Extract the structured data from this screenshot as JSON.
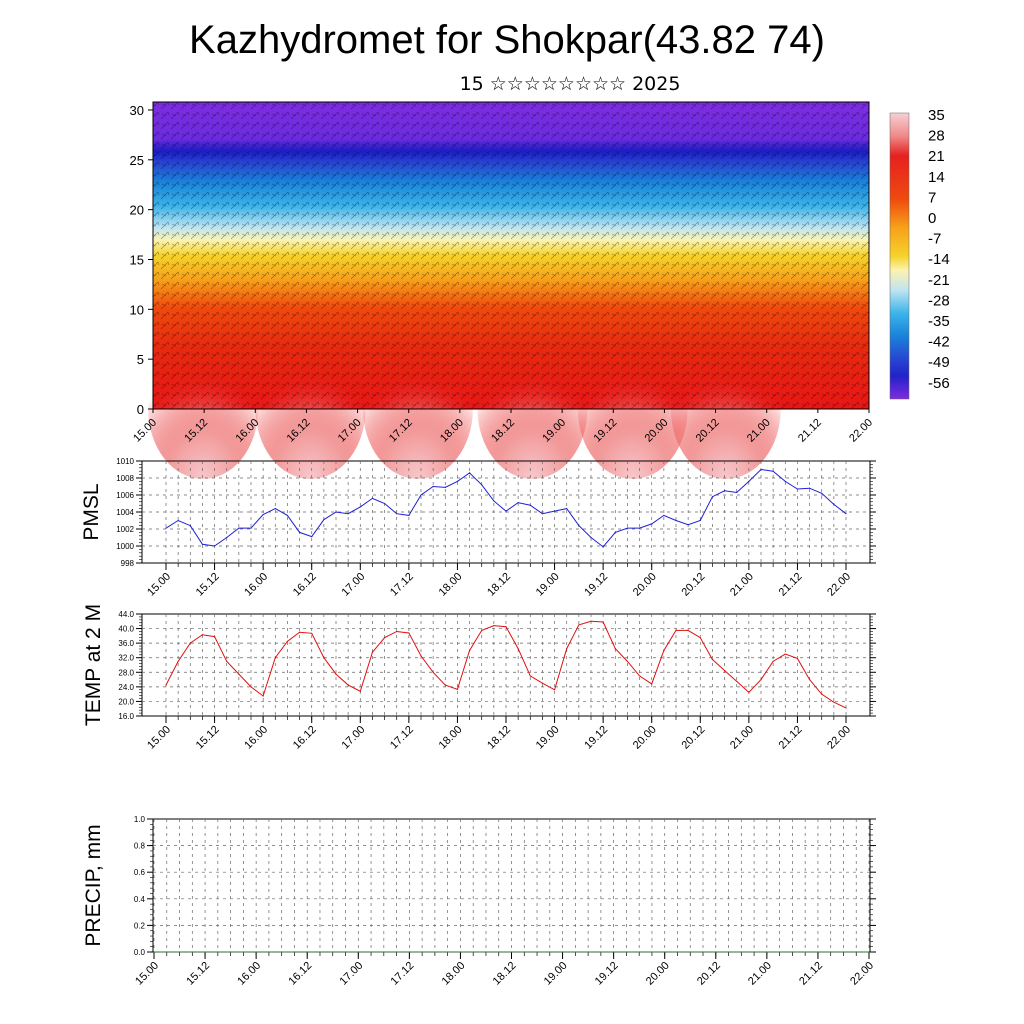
{
  "title": "Kazhydromet for Shokpar(43.82 74)",
  "subtitle": "15 ☆☆☆☆☆☆☆☆ 2025",
  "colors": {
    "pmsl_line": "#1f1fd6",
    "temp_line": "#e01010",
    "precip_line": "#2e6b2e",
    "grid": "#555555"
  },
  "chart_data": [
    {
      "type": "heatmap",
      "description_vars": "vertical temperature cross-section with wind barbs",
      "x_tick_labels": [
        "15.00",
        "15.12",
        "16.00",
        "16.12",
        "17.00",
        "17.12",
        "18.00",
        "18.12",
        "19.00",
        "19.12",
        "20.00",
        "20.12",
        "21.00",
        "21.12",
        "22.00"
      ],
      "y_tick_labels": [
        "0",
        "5",
        "10",
        "15",
        "20",
        "25",
        "30"
      ],
      "ylim": [
        0,
        30.8
      ],
      "colorbar_labels": [
        "35",
        "28",
        "21",
        "14",
        "7",
        "0",
        "-7",
        "-14",
        "-21",
        "-28",
        "-35",
        "-42",
        "-49",
        "-56"
      ],
      "colorbar_stops": [
        {
          "value": 35,
          "color": "#f4c4c8"
        },
        {
          "value": 28,
          "color": "#f08a8a"
        },
        {
          "value": 21,
          "color": "#e62020"
        },
        {
          "value": 14,
          "color": "#e62a10"
        },
        {
          "value": 7,
          "color": "#f05a10"
        },
        {
          "value": 0,
          "color": "#f7a01a"
        },
        {
          "value": -7,
          "color": "#f5d22a"
        },
        {
          "value": -14,
          "color": "#fbf3a8"
        },
        {
          "value": -21,
          "color": "#bfe4f2"
        },
        {
          "value": -28,
          "color": "#3cb4ea"
        },
        {
          "value": -35,
          "color": "#1a82d8"
        },
        {
          "value": -42,
          "color": "#2846d2"
        },
        {
          "value": -49,
          "color": "#2222c8"
        },
        {
          "value": -56,
          "color": "#7e2ce0"
        }
      ]
    },
    {
      "type": "line",
      "ylabel": "PMSL",
      "x_tick_labels": [
        "15.00",
        "15.12",
        "16.00",
        "16.12",
        "17.00",
        "17.12",
        "18.00",
        "18.12",
        "19.00",
        "19.12",
        "20.00",
        "20.12",
        "21.00",
        "21.12",
        "22.00"
      ],
      "y_tick_labels": [
        "998",
        "1000",
        "1002",
        "1004",
        "1006",
        "1008",
        "1010"
      ],
      "ylim": [
        998,
        1010
      ],
      "x_step_hours": 3,
      "series": [
        {
          "values": [
            1002.1,
            1003.0,
            1002.4,
            1000.2,
            1000.0,
            1001.0,
            1002.1,
            1002.1,
            1003.7,
            1004.4,
            1003.6,
            1001.6,
            1001.1,
            1003.1,
            1004.0,
            1003.8,
            1004.6,
            1005.6,
            1005.0,
            1003.8,
            1003.6,
            1006.0,
            1007.0,
            1006.9,
            1007.6,
            1008.6,
            1007.2,
            1005.3,
            1004.1,
            1005.1,
            1004.8,
            1003.8,
            1004.1,
            1004.4,
            1002.4,
            1001.0,
            999.9,
            1001.6,
            1002.1,
            1002.1,
            1002.6,
            1003.6,
            1003.0,
            1002.5,
            1003.0,
            1005.8,
            1006.5,
            1006.3,
            1007.6,
            1009.0,
            1008.8,
            1007.6,
            1006.7,
            1006.8,
            1006.2,
            1004.9,
            1003.8
          ]
        }
      ]
    },
    {
      "type": "line",
      "ylabel": "TEMP at 2 M",
      "x_tick_labels": [
        "15.00",
        "15.12",
        "16.00",
        "16.12",
        "17.00",
        "17.12",
        "18.00",
        "18.12",
        "19.00",
        "19.12",
        "20.00",
        "20.12",
        "21.00",
        "21.12",
        "22.00"
      ],
      "y_tick_labels": [
        "16.0",
        "20.0",
        "24.0",
        "28.0",
        "32.0",
        "36.0",
        "40.0",
        "44.0"
      ],
      "ylim": [
        16,
        44
      ],
      "x_step_hours": 3,
      "series": [
        {
          "values": [
            24.5,
            31.0,
            36.0,
            38.3,
            37.8,
            31.0,
            27.5,
            24.0,
            21.5,
            32.0,
            36.5,
            39.0,
            38.7,
            32.0,
            27.5,
            24.5,
            22.8,
            33.5,
            37.5,
            39.2,
            38.8,
            32.5,
            28.0,
            24.5,
            23.3,
            34.0,
            39.5,
            40.8,
            40.5,
            34.5,
            27.0,
            25.0,
            23.2,
            34.5,
            41.0,
            42.0,
            41.8,
            34.5,
            31.0,
            27.0,
            24.8,
            34.0,
            39.5,
            39.5,
            37.5,
            31.5,
            28.5,
            25.5,
            22.5,
            26.0,
            31.0,
            33.0,
            31.8,
            26.0,
            22.0,
            19.8,
            18.2
          ]
        }
      ]
    },
    {
      "type": "line",
      "ylabel": "PRECIP, mm",
      "x_tick_labels": [
        "15.00",
        "15.12",
        "16.00",
        "16.12",
        "17.00",
        "17.12",
        "18.00",
        "18.12",
        "19.00",
        "19.12",
        "20.00",
        "20.12",
        "21.00",
        "21.12",
        "22.00"
      ],
      "y_tick_labels": [
        "0.0",
        "0.2",
        "0.4",
        "0.6",
        "0.8",
        "1.0"
      ],
      "ylim": [
        0,
        1
      ],
      "series": [
        {
          "values": [
            0,
            0,
            0,
            0,
            0,
            0,
            0,
            0,
            0,
            0,
            0,
            0,
            0,
            0,
            0,
            0,
            0,
            0,
            0,
            0,
            0,
            0,
            0,
            0,
            0,
            0,
            0,
            0,
            0,
            0,
            0,
            0,
            0,
            0,
            0,
            0,
            0,
            0,
            0,
            0,
            0,
            0,
            0,
            0,
            0,
            0,
            0,
            0,
            0,
            0,
            0,
            0,
            0,
            0,
            0,
            0,
            0
          ]
        }
      ]
    }
  ]
}
